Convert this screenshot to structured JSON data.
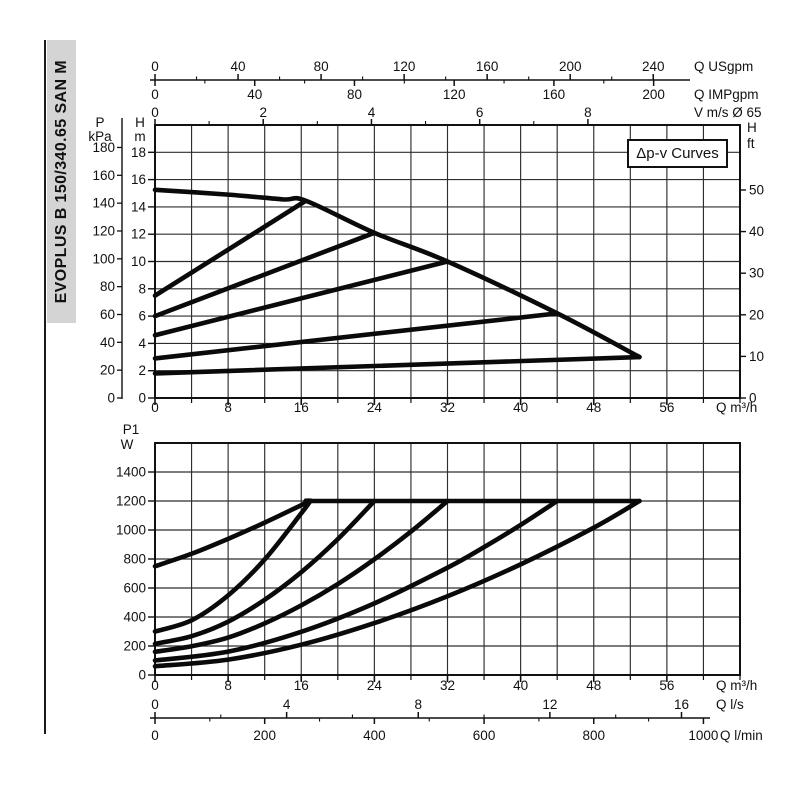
{
  "sidebar": {
    "label": "EVOPLUS B 150/340.65 SAN M"
  },
  "colors": {
    "ink": "#111111",
    "grid": "#2e2e2e",
    "curve": "#0a0a0a",
    "sidebar_bg": "#d4d4d4",
    "page_bg": "#ffffff"
  },
  "chart_data": [
    {
      "id": "head-flow-chart",
      "type": "line",
      "title": "Δp-v Curves",
      "x_range": [
        0,
        64
      ],
      "y_range": [
        0,
        20
      ],
      "x_grid_step": 4,
      "y_grid_step": 2,
      "axes": {
        "bottom": {
          "label": "Q m³/h",
          "major": [
            0,
            8,
            16,
            24,
            32,
            40,
            48,
            56
          ],
          "minor": [
            4,
            12,
            20,
            28,
            36,
            44,
            52,
            60,
            64
          ]
        },
        "left_head_m": {
          "title": "H",
          "unit": "m",
          "major": [
            0,
            2,
            4,
            6,
            8,
            10,
            12,
            14,
            16,
            18
          ]
        },
        "left_pressure_kpa": {
          "title": "P",
          "unit": "kPa",
          "major": [
            0,
            20,
            40,
            60,
            80,
            100,
            120,
            140,
            160,
            180
          ],
          "m_per_unit": 0.10197
        },
        "right_head_ft": {
          "title": "H",
          "unit": "ft",
          "major": [
            0,
            10,
            20,
            30,
            40,
            50
          ],
          "m_per_unit": 0.3048
        },
        "top_usgpm": {
          "label": "Q USgpm",
          "major": [
            0,
            40,
            80,
            120,
            160,
            200,
            240
          ],
          "minor": [
            20,
            60,
            100,
            140,
            180,
            220
          ],
          "m3h_per_unit": 0.227125
        },
        "top_impgpm": {
          "label": "Q IMPgpm",
          "major": [
            0,
            40,
            80,
            120,
            160,
            200
          ],
          "minor": [
            20,
            60,
            100,
            140,
            180
          ],
          "m3h_per_unit": 0.272766
        },
        "top_velocity": {
          "label": "V m/s Ø 65",
          "major": [
            0,
            2,
            4,
            6,
            8
          ],
          "minor": [
            1,
            3,
            5,
            7
          ],
          "m3h_per_unit": 5.92
        }
      },
      "series": [
        {
          "name": "max-speed",
          "points": [
            [
              0,
              15.25
            ],
            [
              8,
              14.9
            ],
            [
              14,
              14.55
            ],
            [
              16.5,
              14.45
            ],
            [
              24,
              12.1
            ],
            [
              32,
              10
            ],
            [
              44,
              6.2
            ],
            [
              53,
              3
            ]
          ]
        },
        {
          "name": "dpv-setting-1",
          "points": [
            [
              0,
              7.5
            ],
            [
              16.5,
              14.45
            ]
          ]
        },
        {
          "name": "dpv-setting-2",
          "points": [
            [
              0,
              6
            ],
            [
              24,
              12.1
            ]
          ]
        },
        {
          "name": "dpv-setting-3",
          "points": [
            [
              0,
              4.6
            ],
            [
              32,
              10
            ]
          ]
        },
        {
          "name": "dpv-setting-4",
          "points": [
            [
              0,
              2.9
            ],
            [
              44,
              6.2
            ]
          ]
        },
        {
          "name": "dpv-setting-5",
          "points": [
            [
              0,
              1.8
            ],
            [
              53,
              3
            ]
          ]
        }
      ]
    },
    {
      "id": "power-flow-chart",
      "type": "line",
      "title": "",
      "x_range": [
        0,
        64
      ],
      "y_range": [
        0,
        1600
      ],
      "x_grid_step": 4,
      "y_grid_step": 200,
      "axes": {
        "bottom": {
          "label": "Q m³/h",
          "major": [
            0,
            8,
            16,
            24,
            32,
            40,
            48,
            56
          ],
          "minor": [
            4,
            12,
            20,
            28,
            36,
            44,
            52,
            60,
            64
          ]
        },
        "left_power_w": {
          "title": "P1",
          "unit": "W",
          "major": [
            0,
            200,
            400,
            600,
            800,
            1000,
            1200,
            1400
          ]
        },
        "bottom_ls": {
          "label": "Q l/s",
          "major": [
            0,
            4,
            8,
            12,
            16
          ],
          "minor": [
            2,
            6,
            10,
            14
          ],
          "m3h_per_unit": 3.6
        },
        "bottom_lmin": {
          "label": "Q l/min",
          "major": [
            0,
            200,
            400,
            600,
            800,
            1000
          ],
          "minor": [
            100,
            300,
            500,
            700,
            900
          ],
          "m3h_per_unit": 0.06
        }
      },
      "series": [
        {
          "name": "p1-max-speed",
          "points": [
            [
              0,
              750
            ],
            [
              4,
              836
            ],
            [
              8,
              939
            ],
            [
              12,
              1051
            ],
            [
              16,
              1171
            ],
            [
              17,
              1200
            ],
            [
              20,
              1200
            ],
            [
              53,
              1200
            ]
          ]
        },
        {
          "name": "p1-setting-1",
          "points": [
            [
              0,
              300
            ],
            [
              4,
              377
            ],
            [
              8,
              549
            ],
            [
              12,
              797
            ],
            [
              16,
              1115
            ],
            [
              17,
              1200
            ]
          ]
        },
        {
          "name": "p1-setting-2",
          "points": [
            [
              0,
              215
            ],
            [
              4,
              268
            ],
            [
              8,
              368
            ],
            [
              12,
              519
            ],
            [
              16,
              709
            ],
            [
              20,
              937
            ],
            [
              24,
              1200
            ]
          ]
        },
        {
          "name": "p1-setting-3",
          "points": [
            [
              0,
              160
            ],
            [
              4,
              198
            ],
            [
              8,
              258
            ],
            [
              12,
              356
            ],
            [
              16,
              480
            ],
            [
              20,
              627
            ],
            [
              24,
              798
            ],
            [
              28,
              989
            ],
            [
              32,
              1200
            ]
          ]
        },
        {
          "name": "p1-setting-4",
          "points": [
            [
              0,
              100
            ],
            [
              8,
              161
            ],
            [
              16,
              298
            ],
            [
              24,
              494
            ],
            [
              32,
              740
            ],
            [
              36,
              882
            ],
            [
              40,
              1035
            ],
            [
              44,
              1200
            ]
          ]
        },
        {
          "name": "p1-setting-5",
          "points": [
            [
              0,
              60
            ],
            [
              8,
              106
            ],
            [
              16,
              209
            ],
            [
              24,
              358
            ],
            [
              32,
              543
            ],
            [
              40,
              763
            ],
            [
              48,
              1016
            ],
            [
              53,
              1200
            ]
          ]
        }
      ]
    }
  ]
}
